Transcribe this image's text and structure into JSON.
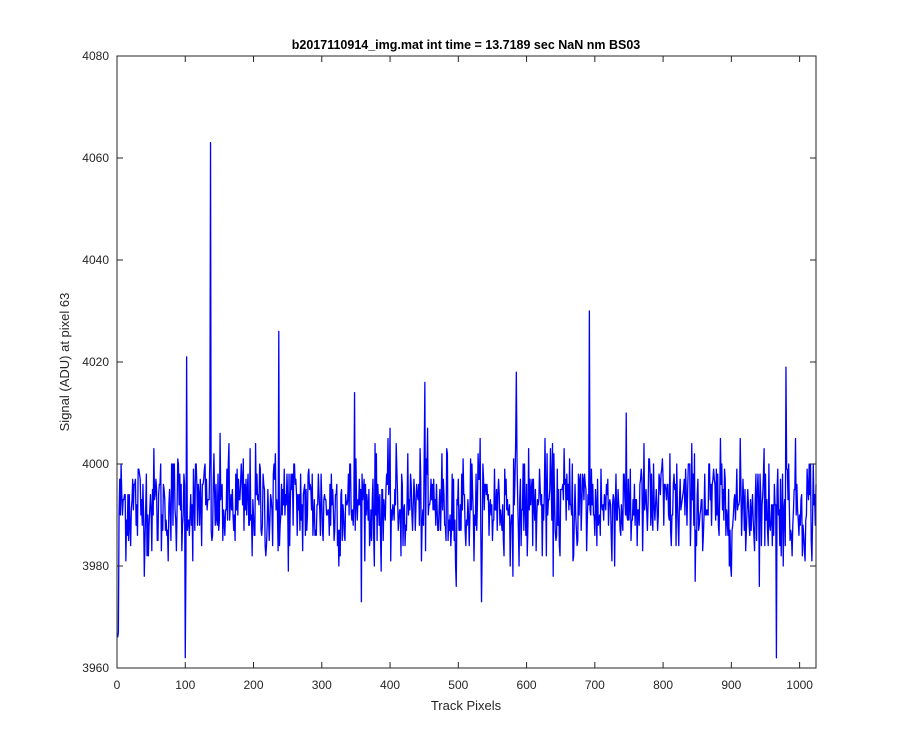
{
  "chart_data": {
    "type": "line",
    "title": "b2017110914_img.mat int time = 13.7189 sec  NaN nm BS03",
    "xlabel": "Track Pixels",
    "ylabel": "Signal (ADU) at pixel 63",
    "xlim": [
      0,
      1024
    ],
    "ylim": [
      3960,
      4080
    ],
    "xticks": [
      0,
      100,
      200,
      300,
      400,
      500,
      600,
      700,
      800,
      900,
      1000
    ],
    "yticks": [
      3960,
      3980,
      4000,
      4020,
      4040,
      4060,
      4080
    ],
    "grid": false,
    "legend": "none",
    "series": [
      {
        "color": "#0000ff",
        "n_points": 1024,
        "mean": 3992,
        "spikes": [
          {
            "x": 1,
            "y": 3966
          },
          {
            "x": 2,
            "y": 3967
          },
          {
            "x": 100,
            "y": 3962
          },
          {
            "x": 102,
            "y": 4021
          },
          {
            "x": 137,
            "y": 4063
          },
          {
            "x": 237,
            "y": 4026
          },
          {
            "x": 348,
            "y": 4014
          },
          {
            "x": 451,
            "y": 4016
          },
          {
            "x": 585,
            "y": 4018
          },
          {
            "x": 692,
            "y": 4030
          },
          {
            "x": 966,
            "y": 3962
          },
          {
            "x": 980,
            "y": 4019
          }
        ]
      }
    ]
  }
}
